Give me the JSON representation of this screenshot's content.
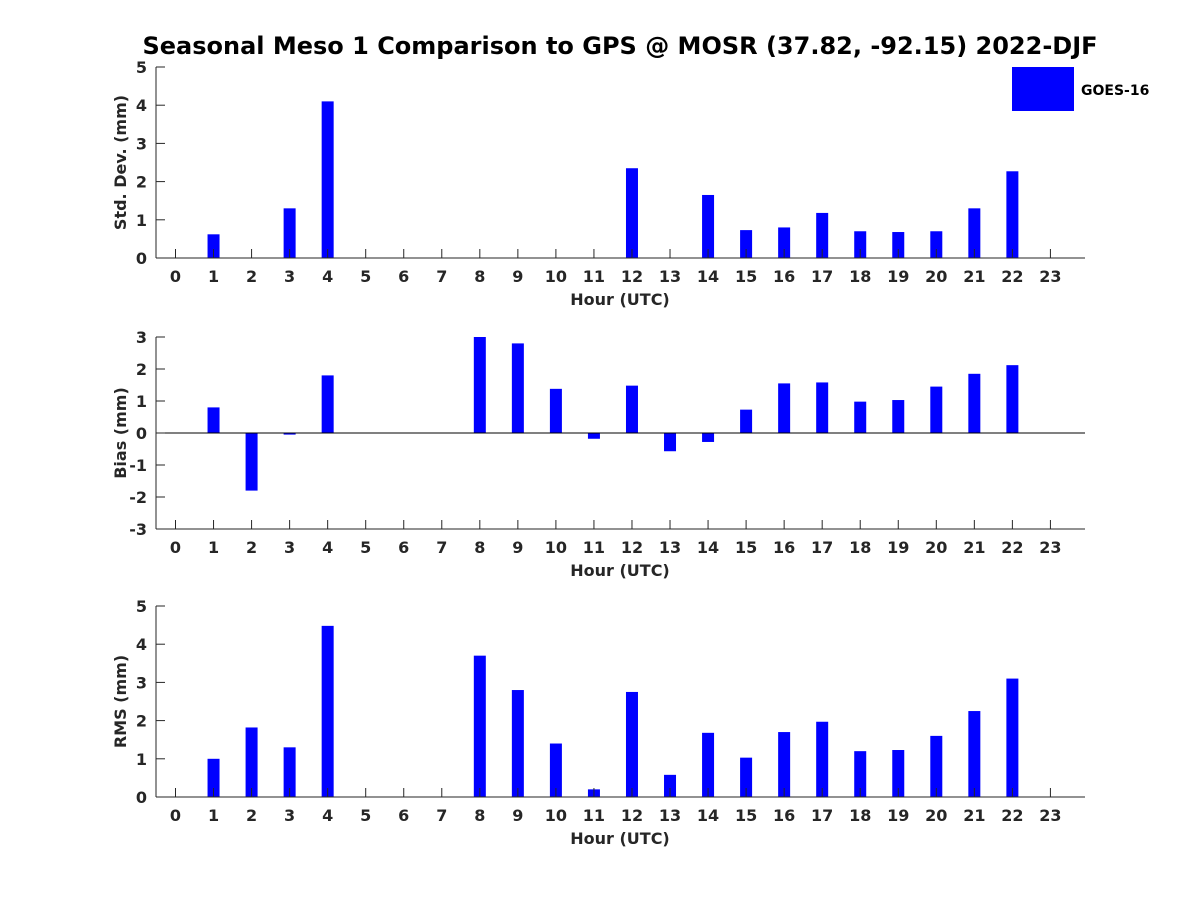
{
  "title": "Seasonal Meso 1 Comparison to GPS @ MOSR (37.82, -92.15) 2022-DJF",
  "colors": {
    "bar": "#0000ff",
    "axis": "#262626"
  },
  "legend": {
    "label": "GOES-16",
    "placement": "top-right"
  },
  "chart_data": [
    {
      "type": "bar",
      "name": "stddev",
      "xlabel": "Hour (UTC)",
      "ylabel": "Std. Dev. (mm)",
      "ylim": [
        0,
        5
      ],
      "yticks": [
        0,
        1,
        2,
        3,
        4,
        5
      ],
      "categories": [
        "0",
        "1",
        "2",
        "3",
        "4",
        "5",
        "6",
        "7",
        "8",
        "9",
        "10",
        "11",
        "12",
        "13",
        "14",
        "15",
        "16",
        "17",
        "18",
        "19",
        "20",
        "21",
        "22",
        "23"
      ],
      "series": [
        {
          "name": "GOES-16",
          "values": [
            null,
            0.62,
            null,
            1.3,
            4.1,
            null,
            null,
            null,
            null,
            null,
            null,
            null,
            2.35,
            null,
            1.65,
            0.73,
            0.8,
            1.18,
            0.7,
            0.68,
            0.7,
            1.3,
            2.27,
            null
          ]
        }
      ],
      "grid": false
    },
    {
      "type": "bar",
      "name": "bias",
      "xlabel": "Hour (UTC)",
      "ylabel": "Bias (mm)",
      "ylim": [
        -3,
        3
      ],
      "yticks": [
        -3,
        -2,
        -1,
        0,
        1,
        2,
        3
      ],
      "categories": [
        "0",
        "1",
        "2",
        "3",
        "4",
        "5",
        "6",
        "7",
        "8",
        "9",
        "10",
        "11",
        "12",
        "13",
        "14",
        "15",
        "16",
        "17",
        "18",
        "19",
        "20",
        "21",
        "22",
        "23"
      ],
      "series": [
        {
          "name": "GOES-16",
          "values": [
            null,
            0.8,
            -1.8,
            -0.05,
            1.8,
            null,
            null,
            null,
            3.0,
            2.8,
            1.38,
            -0.18,
            1.48,
            -0.57,
            -0.28,
            0.73,
            1.55,
            1.58,
            0.98,
            1.03,
            1.45,
            1.85,
            2.12,
            null
          ]
        }
      ],
      "grid": false
    },
    {
      "type": "bar",
      "name": "rms",
      "xlabel": "Hour (UTC)",
      "ylabel": "RMS (mm)",
      "ylim": [
        0,
        5
      ],
      "yticks": [
        0,
        1,
        2,
        3,
        4,
        5
      ],
      "categories": [
        "0",
        "1",
        "2",
        "3",
        "4",
        "5",
        "6",
        "7",
        "8",
        "9",
        "10",
        "11",
        "12",
        "13",
        "14",
        "15",
        "16",
        "17",
        "18",
        "19",
        "20",
        "21",
        "22",
        "23"
      ],
      "series": [
        {
          "name": "GOES-16",
          "values": [
            null,
            1.0,
            1.82,
            1.3,
            4.48,
            null,
            null,
            null,
            3.7,
            2.8,
            1.4,
            0.2,
            2.75,
            0.58,
            1.68,
            1.03,
            1.7,
            1.97,
            1.2,
            1.23,
            1.6,
            2.25,
            3.1,
            null
          ]
        }
      ],
      "grid": false
    }
  ]
}
